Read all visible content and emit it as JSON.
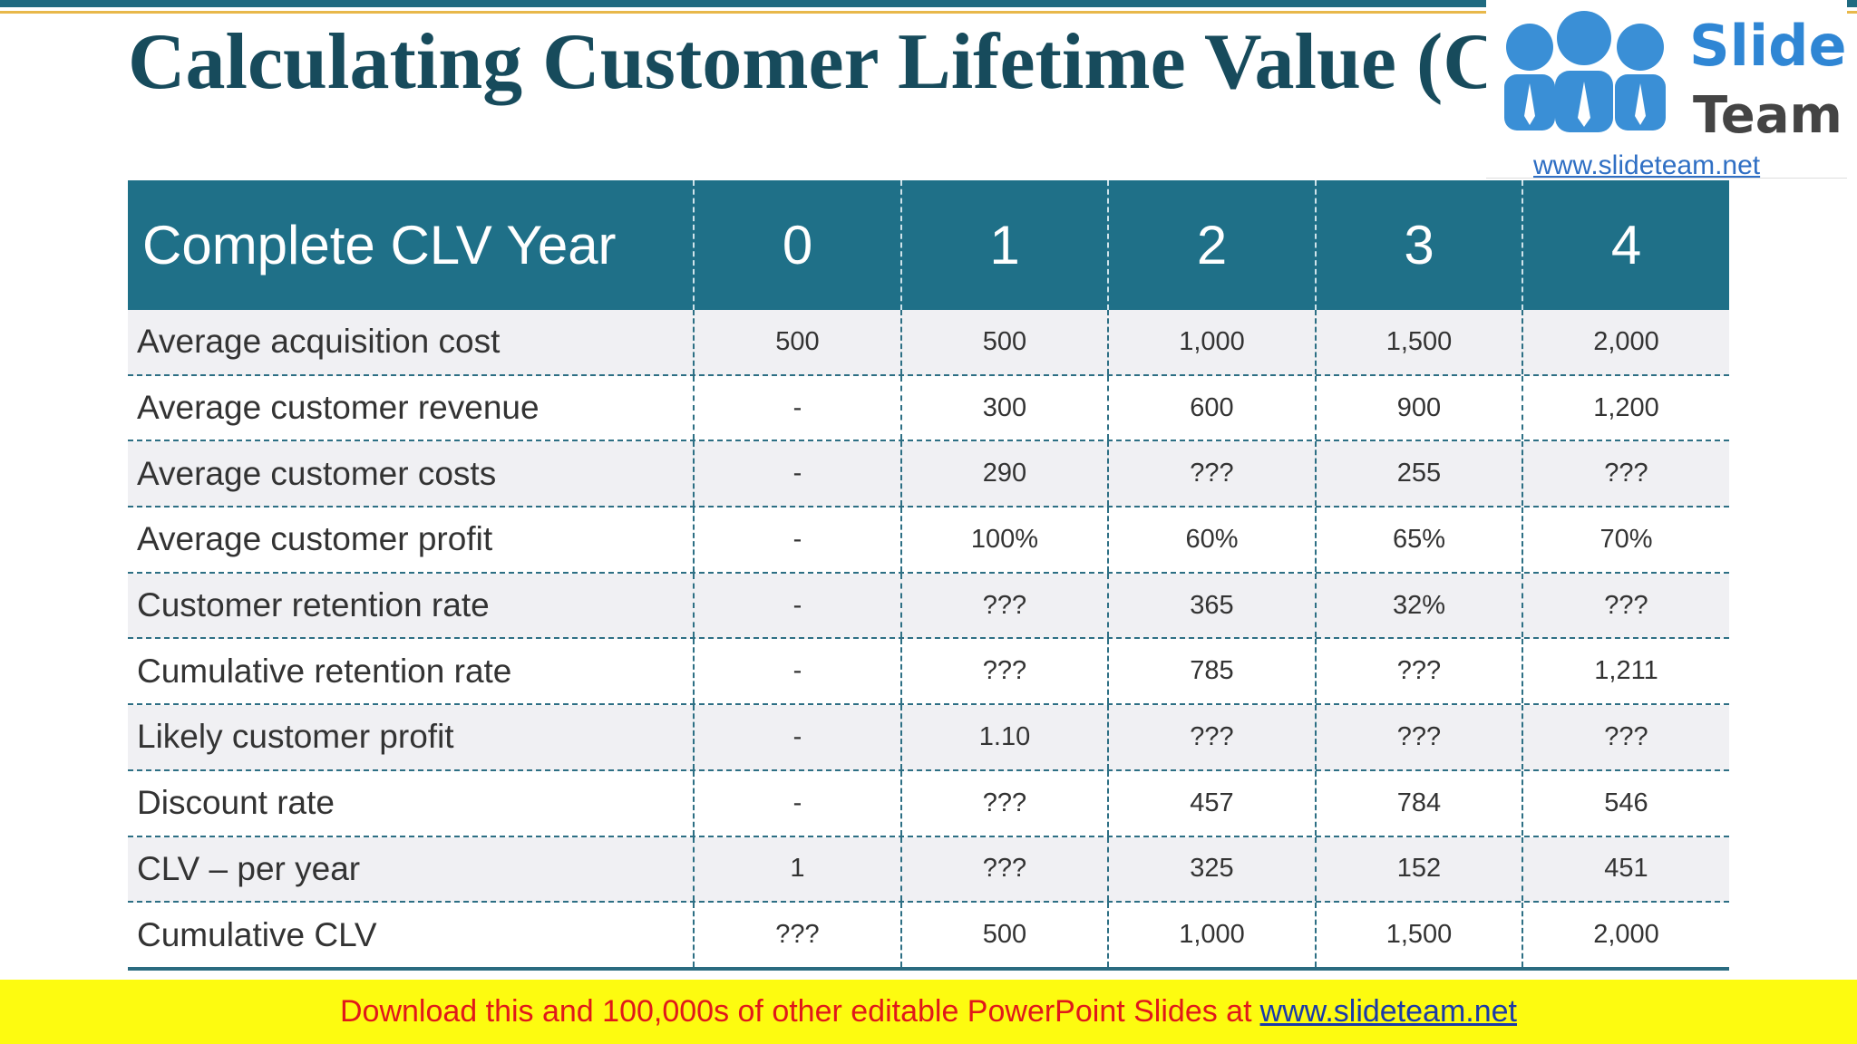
{
  "header": {
    "title": "Calculating Customer Lifetime Value (CLV)"
  },
  "logo": {
    "line1": "Slide",
    "line2": "Team",
    "url": "www.slideteam.net"
  },
  "table": {
    "columns": [
      "Complete CLV Year",
      "0",
      "1",
      "2",
      "3",
      "4"
    ],
    "rows": [
      [
        "Average acquisition cost",
        "500",
        "500",
        "1,000",
        "1,500",
        "2,000"
      ],
      [
        "Average customer revenue",
        "-",
        "300",
        "600",
        "900",
        "1,200"
      ],
      [
        "Average customer costs",
        "-",
        "290",
        "???",
        "255",
        "???"
      ],
      [
        "Average customer profit",
        "-",
        "100%",
        "60%",
        "65%",
        "70%"
      ],
      [
        "Customer retention rate",
        "-",
        "???",
        "365",
        "32%",
        "???"
      ],
      [
        "Cumulative retention rate",
        "-",
        "???",
        "785",
        "???",
        "1,211"
      ],
      [
        "Likely customer profit",
        "-",
        "1.10",
        "???",
        "???",
        "???"
      ],
      [
        "Discount rate",
        "-",
        "???",
        "457",
        "784",
        "546"
      ],
      [
        "CLV – per year",
        "1",
        "???",
        "325",
        "152",
        "451"
      ],
      [
        "Cumulative CLV",
        "???",
        "500",
        "1,000",
        "1,500",
        "2,000"
      ]
    ]
  },
  "footer": {
    "text": "Download this and 100,000s of other editable PowerPoint Slides at",
    "link": "www.slideteam.net"
  }
}
